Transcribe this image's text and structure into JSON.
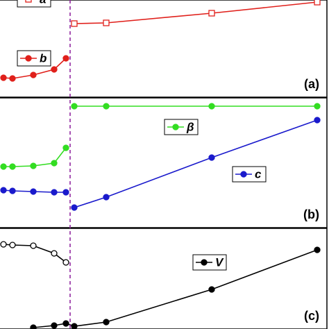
{
  "chart_data": [
    {
      "type": "line",
      "label": "(a)",
      "xlim": [
        0,
        474
      ],
      "ylim": [
        0,
        140
      ],
      "series": [
        {
          "name": "a",
          "color": "#e0201b",
          "marker": "open-square",
          "x": [
            107,
            153,
            305,
            457
          ],
          "values": [
            106,
            107,
            121,
            137
          ]
        },
        {
          "name": "b",
          "color": "#e0201b",
          "marker": "filled-circle",
          "x": [
            5,
            18,
            48,
            78,
            95
          ],
          "values": [
            28,
            27,
            32,
            40,
            56
          ]
        }
      ]
    },
    {
      "type": "line",
      "label": "(b)",
      "xlim": [
        0,
        474
      ],
      "ylim": [
        0,
        187
      ],
      "series": [
        {
          "name": "β",
          "color": "#33dd22",
          "marker": "filled-circle",
          "x": [
            5,
            18,
            48,
            78,
            95,
            101,
            107,
            153,
            305,
            457
          ],
          "values": [
            88,
            88,
            89,
            93,
            115,
            null,
            175,
            175,
            175,
            175
          ]
        },
        {
          "name": "c",
          "color": "#1a1acc",
          "marker": "filled-circle",
          "x": [
            5,
            18,
            48,
            78,
            95,
            101,
            107,
            153,
            305,
            457
          ],
          "values": [
            54,
            53,
            52,
            51,
            51,
            null,
            29,
            44,
            101,
            155
          ]
        }
      ]
    },
    {
      "type": "line",
      "label": "(c)",
      "xlim": [
        0,
        474
      ],
      "ylim": [
        0,
        145
      ],
      "series": [
        {
          "color": "#000000",
          "marker": "open-circle",
          "x": [
            5,
            18,
            48,
            78,
            95
          ],
          "values": [
            122,
            121,
            120,
            109,
            96
          ]
        },
        {
          "name": "V",
          "color": "#000000",
          "marker": "filled-circle",
          "x": [
            48,
            78,
            95,
            107,
            153,
            305,
            457
          ],
          "values": [
            2,
            5,
            8,
            4,
            10,
            57,
            114
          ]
        }
      ]
    }
  ]
}
